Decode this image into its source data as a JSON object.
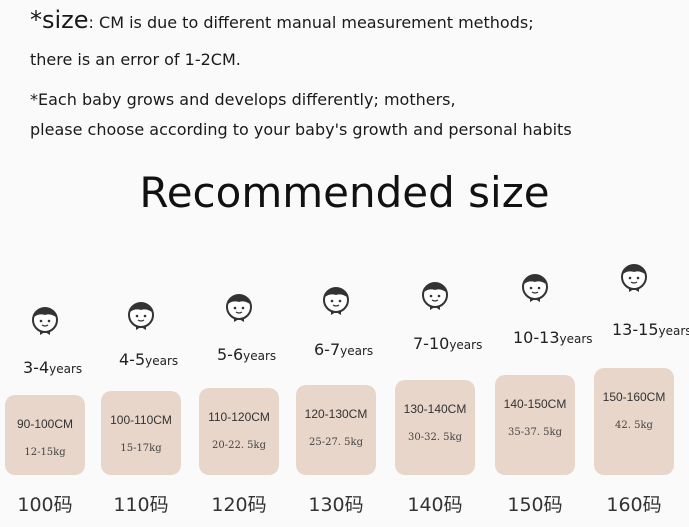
{
  "notes": {
    "size_prefix": "*size",
    "line1": ": CM is due to different manual measurement methods;",
    "line2": "there is an error of 1-2CM.",
    "line3": "*Each baby grows and develops differently; mothers,",
    "line4": "please choose according to your baby's growth and personal habits"
  },
  "title": "Recommended size",
  "box_color": "#e8d6ca",
  "sizes": [
    {
      "age": "3-4",
      "unit": "years",
      "height": "90-100CM",
      "weight": "12-15kg",
      "size": "100码"
    },
    {
      "age": "4-5",
      "unit": "years",
      "height": "100-110CM",
      "weight": "15-17kg",
      "size": "110码"
    },
    {
      "age": "5-6",
      "unit": "years",
      "height": "110-120CM",
      "weight": "20-22. 5kg",
      "size": "120码"
    },
    {
      "age": "6-7",
      "unit": "years",
      "height": "120-130CM",
      "weight": "25-27. 5kg",
      "size": "130码"
    },
    {
      "age": "7-10",
      "unit": "years",
      "height": "130-140CM",
      "weight": "30-32. 5kg",
      "size": "140码"
    },
    {
      "age": "10-13",
      "unit": "years",
      "height": "140-150CM",
      "weight": "35-37. 5kg",
      "size": "150码"
    },
    {
      "age": "13-15",
      "unit": "years",
      "height": "150-160CM",
      "weight": "42. 5kg",
      "size": "160码"
    }
  ]
}
